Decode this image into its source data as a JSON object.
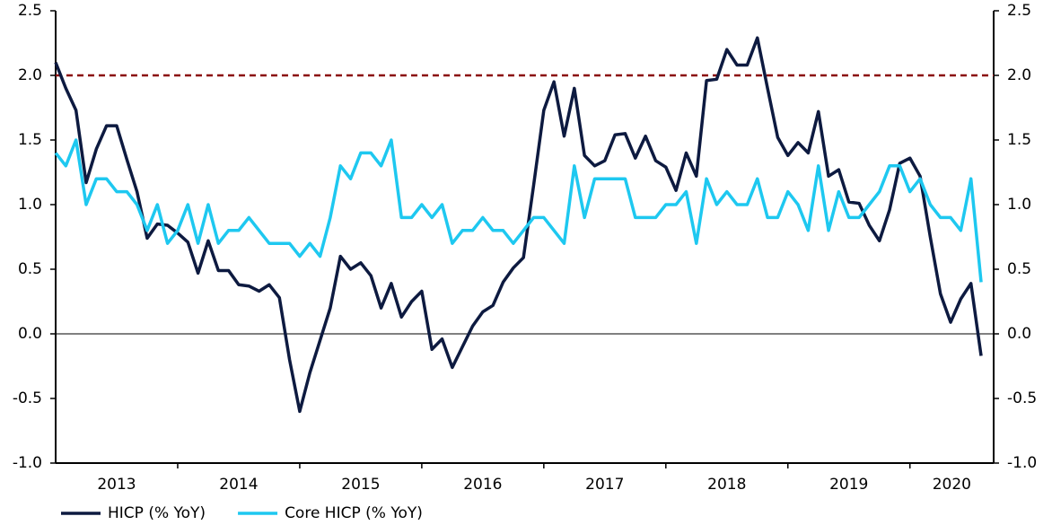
{
  "chart_data": {
    "type": "line",
    "categories": [
      "2013",
      null,
      null,
      null,
      null,
      null,
      null,
      null,
      null,
      null,
      null,
      null,
      "2014",
      null,
      null,
      null,
      null,
      null,
      null,
      null,
      null,
      null,
      null,
      null,
      "2015",
      null,
      null,
      null,
      null,
      null,
      null,
      null,
      null,
      null,
      null,
      null,
      "2016",
      null,
      null,
      null,
      null,
      null,
      null,
      null,
      null,
      null,
      null,
      null,
      "2017",
      null,
      null,
      null,
      null,
      null,
      null,
      null,
      null,
      null,
      null,
      null,
      "2018",
      null,
      null,
      null,
      null,
      null,
      null,
      null,
      null,
      null,
      null,
      null,
      "2019",
      null,
      null,
      null,
      null,
      null,
      null,
      null,
      null,
      null,
      null,
      null,
      "2020",
      null,
      null,
      null,
      null,
      null,
      null,
      null
    ],
    "series": [
      {
        "name": "HICP (% YoY)",
        "color": "#0d1a40",
        "values": [
          2.1,
          1.9,
          1.73,
          1.17,
          1.43,
          1.61,
          1.61,
          1.35,
          1.1,
          0.74,
          0.85,
          0.84,
          0.78,
          0.71,
          0.47,
          0.72,
          0.49,
          0.49,
          0.38,
          0.37,
          0.33,
          0.38,
          0.28,
          -0.2,
          -0.6,
          -0.3,
          -0.05,
          0.2,
          0.6,
          0.5,
          0.55,
          0.45,
          0.2,
          0.39,
          0.13,
          0.25,
          0.33,
          -0.12,
          -0.04,
          -0.26,
          -0.1,
          0.06,
          0.17,
          0.22,
          0.4,
          0.51,
          0.59,
          1.15,
          1.73,
          1.95,
          1.53,
          1.9,
          1.38,
          1.3,
          1.34,
          1.54,
          1.55,
          1.36,
          1.53,
          1.34,
          1.29,
          1.11,
          1.4,
          1.22,
          1.96,
          1.97,
          2.2,
          2.08,
          2.08,
          2.29,
          1.9,
          1.52,
          1.38,
          1.48,
          1.4,
          1.72,
          1.22,
          1.27,
          1.02,
          1.01,
          0.84,
          0.72,
          0.96,
          1.32,
          1.36,
          1.22,
          0.75,
          0.31,
          0.09,
          0.27,
          0.39,
          -0.17
        ]
      },
      {
        "name": "Core HICP (% YoY)",
        "color": "#1ec8f0",
        "values": [
          1.4,
          1.3,
          1.5,
          1.0,
          1.2,
          1.2,
          1.1,
          1.1,
          1.0,
          0.8,
          1.0,
          0.7,
          0.8,
          1.0,
          0.7,
          1.0,
          0.7,
          0.8,
          0.8,
          0.9,
          0.8,
          0.7,
          0.7,
          0.7,
          0.6,
          0.7,
          0.6,
          0.9,
          1.3,
          1.2,
          1.4,
          1.4,
          1.3,
          1.5,
          0.9,
          0.9,
          1.0,
          0.9,
          1.0,
          0.7,
          0.8,
          0.8,
          0.9,
          0.8,
          0.8,
          0.7,
          0.8,
          0.9,
          0.9,
          0.8,
          0.7,
          1.3,
          0.9,
          1.2,
          1.2,
          1.2,
          1.2,
          0.9,
          0.9,
          0.9,
          1.0,
          1.0,
          1.1,
          0.7,
          1.2,
          1.0,
          1.1,
          1.0,
          1.0,
          1.2,
          0.9,
          0.9,
          1.1,
          1.0,
          0.8,
          1.3,
          0.8,
          1.1,
          0.9,
          0.9,
          1.0,
          1.1,
          1.3,
          1.3,
          1.1,
          1.2,
          1.0,
          0.9,
          0.9,
          0.8,
          1.2,
          0.4
        ]
      }
    ],
    "ylim": [
      -1,
      2.5
    ],
    "yticks": [
      {
        "value": -1,
        "label": "-1.0"
      },
      -0.5,
      {
        "value": 0,
        "label": "0.0"
      },
      0.5,
      {
        "value": 1,
        "label": "1.0"
      },
      1.5,
      {
        "value": 2,
        "label": "2.0"
      },
      2.5
    ],
    "y2lim": [
      -1,
      2.5
    ],
    "y2ticks": [
      {
        "value": -1,
        "label": "-1.0"
      },
      -0.5,
      {
        "value": 0,
        "label": "0.0"
      },
      0.5,
      {
        "value": 1,
        "label": "1.0"
      },
      1.5,
      {
        "value": 2,
        "label": "2.0"
      },
      2.5
    ],
    "reference_line": {
      "value": 2,
      "color": "#8b0a0a"
    },
    "grid": false,
    "legend": "bottom-left"
  }
}
